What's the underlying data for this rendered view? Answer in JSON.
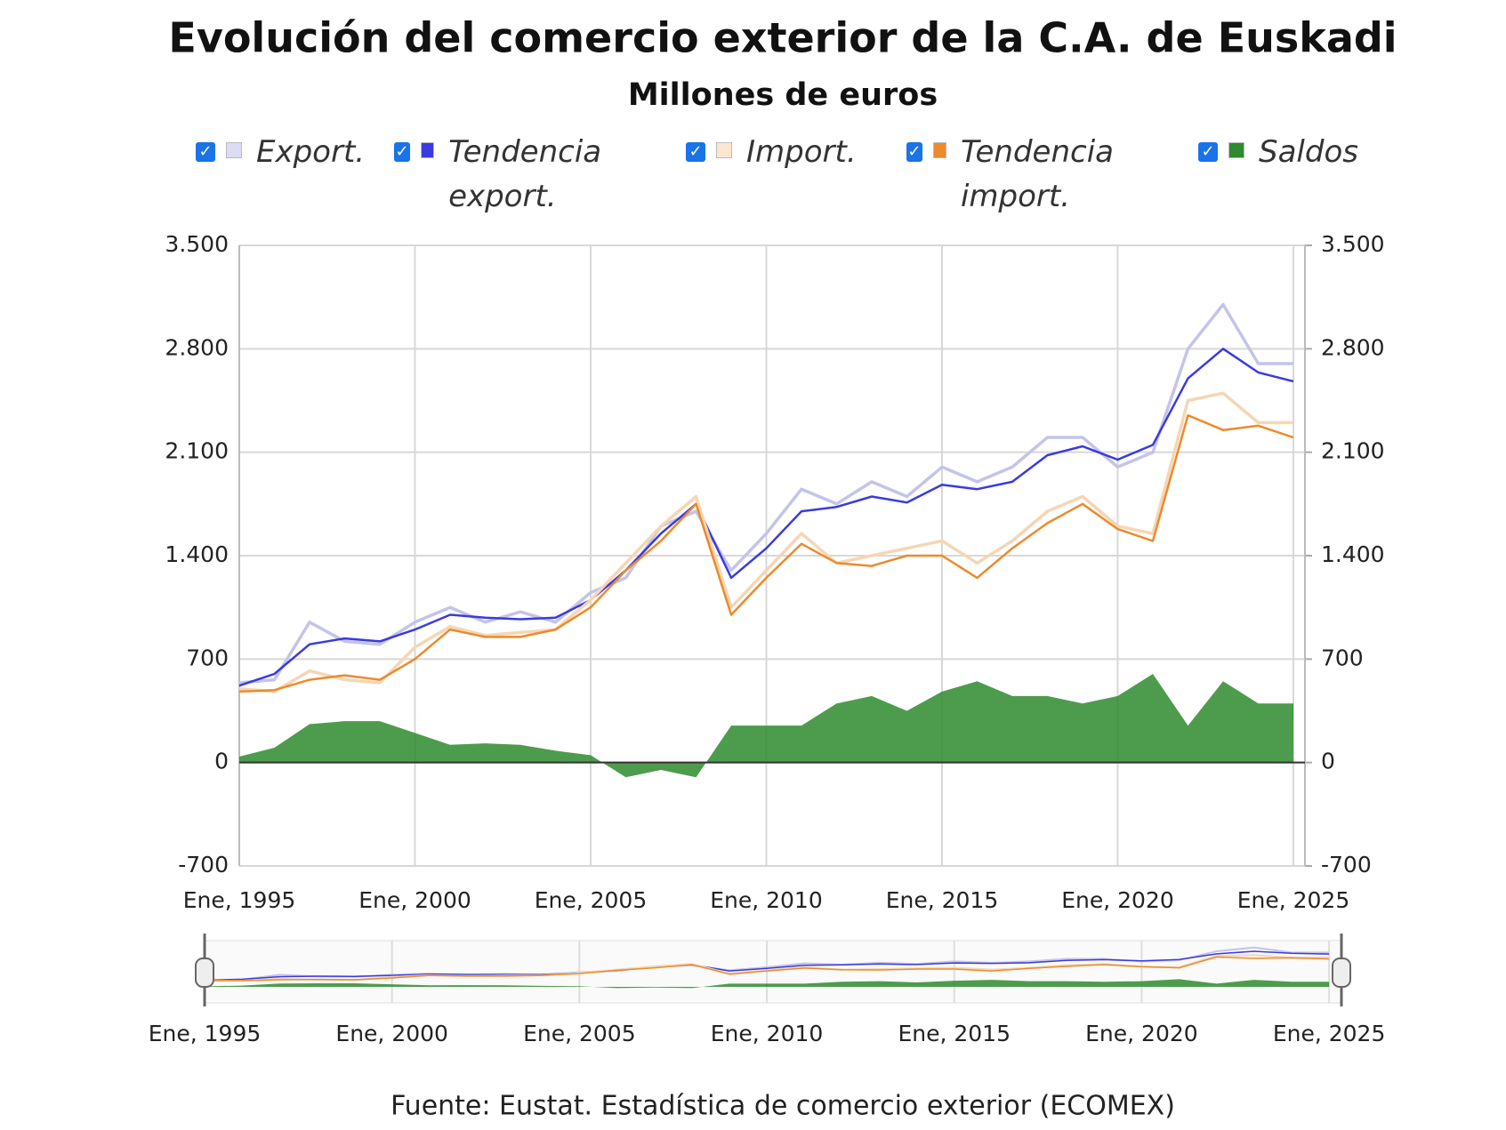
{
  "chart_data": {
    "type": "line",
    "title": "Evolución del comercio exterior de la C.A. de Euskadi",
    "subtitle": "Millones de euros",
    "source": "Fuente: Eustat. Estadística de comercio exterior (ECOMEX)",
    "x": [
      1995,
      1996,
      1997,
      1998,
      1999,
      2000,
      2001,
      2002,
      2003,
      2004,
      2005,
      2006,
      2007,
      2008,
      2009,
      2010,
      2011,
      2012,
      2013,
      2014,
      2015,
      2016,
      2017,
      2018,
      2019,
      2020,
      2021,
      2022,
      2023,
      2024,
      2025
    ],
    "series": [
      {
        "name": "Export.",
        "type": "line",
        "color": "#c4c4ea",
        "values": [
          540,
          560,
          950,
          820,
          800,
          950,
          1050,
          950,
          1020,
          950,
          1150,
          1250,
          1600,
          1700,
          1300,
          1550,
          1850,
          1750,
          1900,
          1800,
          2000,
          1900,
          2000,
          2200,
          2200,
          2000,
          2100,
          2800,
          3100,
          2700,
          2700
        ]
      },
      {
        "name": "Tendencia export.",
        "type": "line",
        "color": "#3a3ae0",
        "values": [
          520,
          600,
          800,
          840,
          820,
          900,
          1000,
          980,
          970,
          980,
          1100,
          1300,
          1550,
          1750,
          1250,
          1450,
          1700,
          1730,
          1800,
          1760,
          1880,
          1850,
          1900,
          2080,
          2140,
          2050,
          2150,
          2600,
          2800,
          2640,
          2580
        ]
      },
      {
        "name": "Import.",
        "type": "line",
        "color": "#f5d6b4",
        "values": [
          500,
          480,
          620,
          560,
          540,
          780,
          920,
          860,
          880,
          900,
          1100,
          1350,
          1600,
          1800,
          1050,
          1300,
          1550,
          1350,
          1400,
          1450,
          1500,
          1350,
          1500,
          1700,
          1800,
          1600,
          1550,
          2450,
          2500,
          2300,
          2300
        ]
      },
      {
        "name": "Tendencia import.",
        "type": "line",
        "color": "#ec8a2c",
        "values": [
          480,
          490,
          560,
          590,
          560,
          700,
          900,
          850,
          850,
          900,
          1050,
          1300,
          1500,
          1750,
          1000,
          1250,
          1480,
          1350,
          1330,
          1400,
          1400,
          1250,
          1450,
          1620,
          1750,
          1580,
          1500,
          2350,
          2250,
          2280,
          2200
        ]
      },
      {
        "name": "Saldos",
        "type": "area",
        "color": "#2e8b2e",
        "values": [
          40,
          100,
          260,
          280,
          280,
          200,
          120,
          130,
          120,
          80,
          50,
          -100,
          -50,
          -100,
          250,
          250,
          250,
          400,
          450,
          350,
          480,
          550,
          450,
          450,
          400,
          450,
          600,
          250,
          550,
          400,
          400
        ]
      }
    ],
    "xlim": [
      1995,
      2025.33
    ],
    "xticks": [
      {
        "value": 1995,
        "label": "Ene, 1995"
      },
      {
        "value": 2000,
        "label": "Ene, 2000"
      },
      {
        "value": 2005,
        "label": "Ene, 2005"
      },
      {
        "value": 2010,
        "label": "Ene, 2010"
      },
      {
        "value": 2015,
        "label": "Ene, 2015"
      },
      {
        "value": 2020,
        "label": "Ene, 2020"
      },
      {
        "value": 2025,
        "label": "Ene, 2025"
      }
    ],
    "ylim": [
      -700,
      3500
    ],
    "yticks": [
      -700,
      0,
      700,
      {
        "value": 1400,
        "label": "1.400"
      },
      {
        "value": 2100,
        "label": "2.100"
      },
      {
        "value": 2800,
        "label": "2.800"
      },
      {
        "value": 3500,
        "label": "3.500"
      }
    ],
    "y2lim": [
      -700,
      3500
    ],
    "y2ticks": [
      -700,
      0,
      700,
      {
        "value": 1400,
        "label": "1.400"
      },
      {
        "value": 2100,
        "label": "2.100"
      },
      {
        "value": 2800,
        "label": "2.800"
      },
      {
        "value": 3500,
        "label": "3.500"
      }
    ],
    "grid": true
  }
}
